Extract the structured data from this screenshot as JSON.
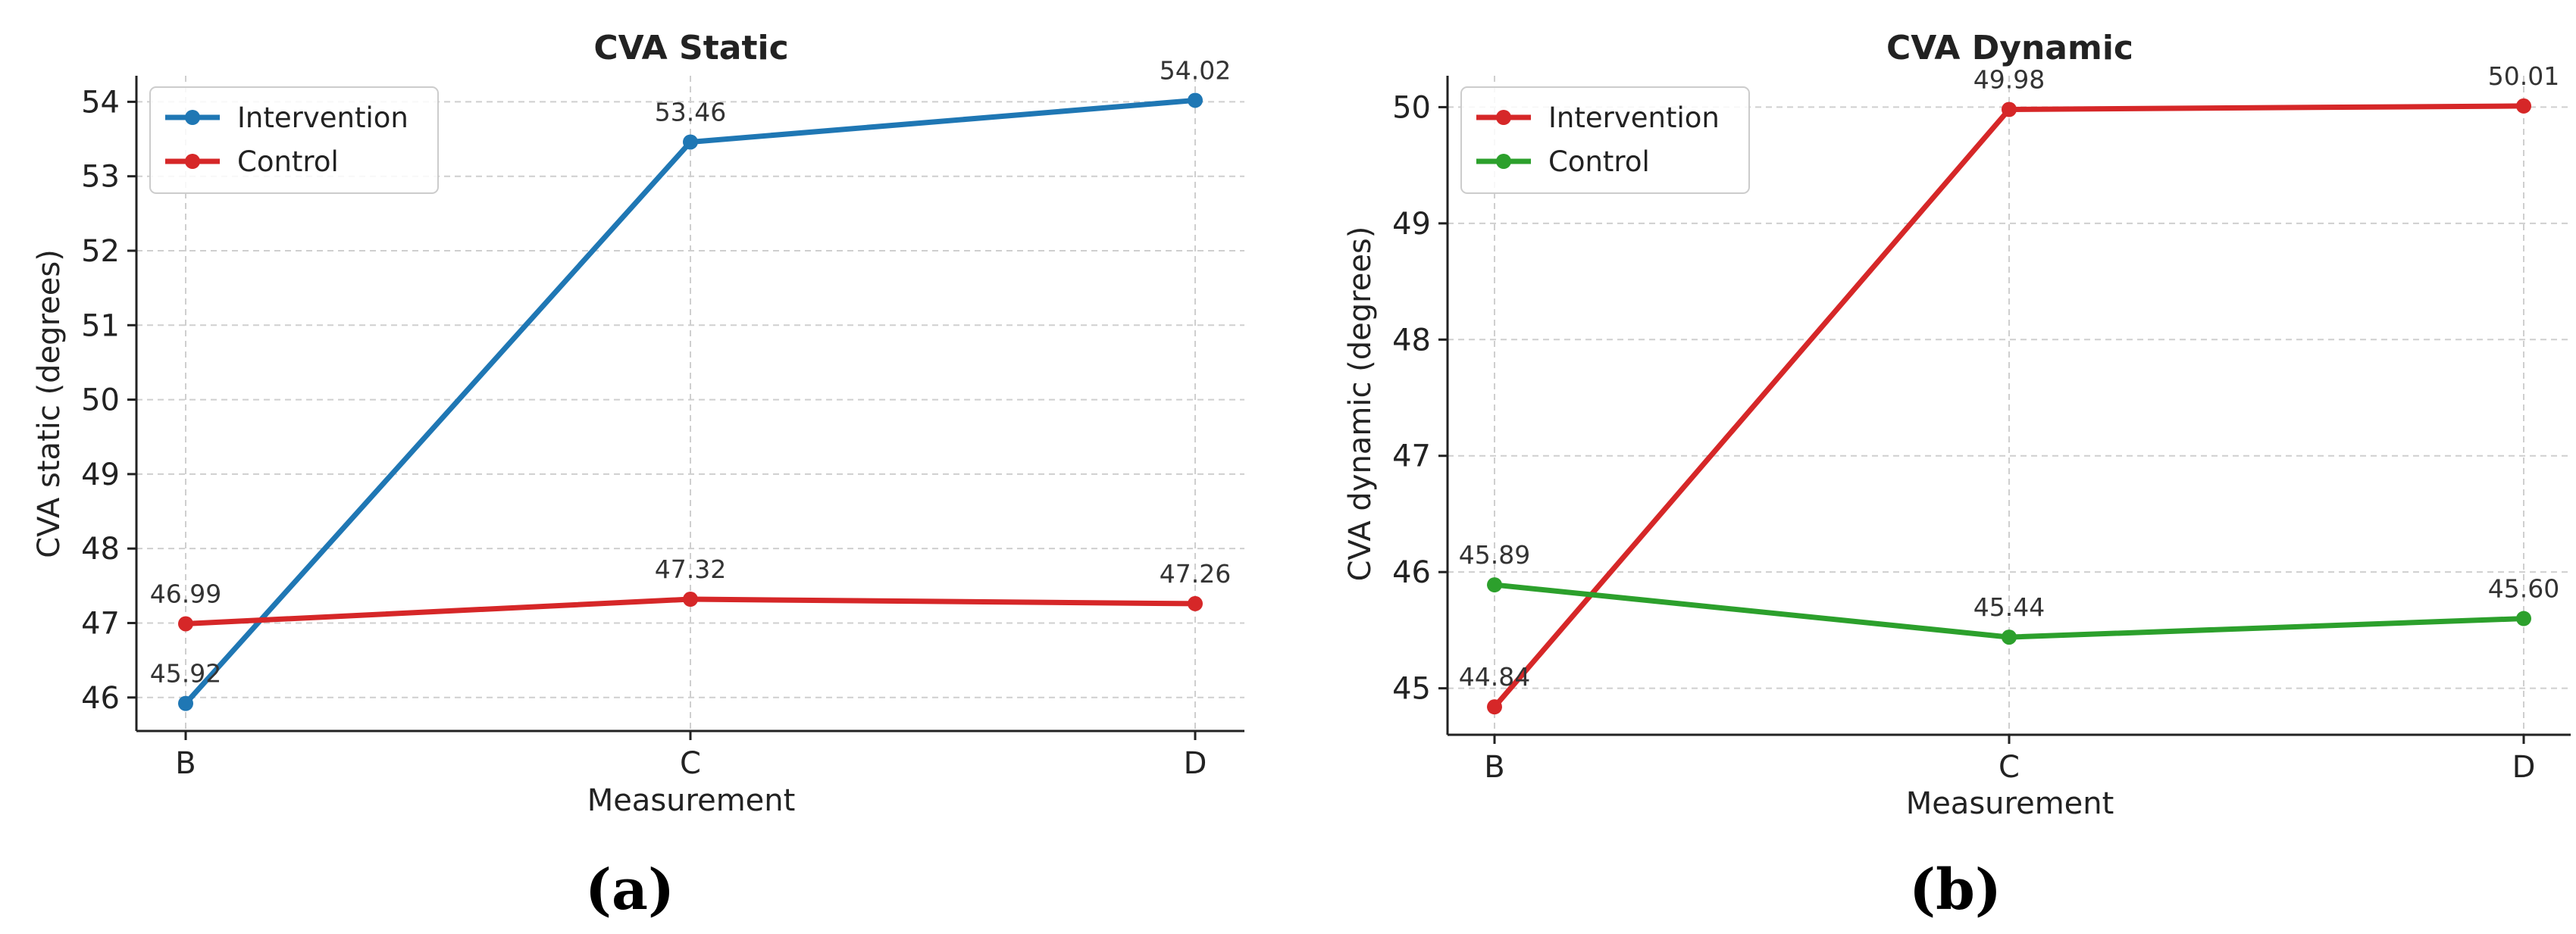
{
  "chart_data": [
    {
      "type": "line",
      "title": "CVA Static",
      "xlabel": "Measurement",
      "ylabel": "CVA static (degrees)",
      "categories": [
        "B",
        "C",
        "D"
      ],
      "ylim": [
        45.55,
        54.35
      ],
      "yticks": [
        46,
        47,
        48,
        49,
        50,
        51,
        52,
        53,
        54
      ],
      "grid": true,
      "legend_position": "top-left",
      "caption": "(a)",
      "series": [
        {
          "name": "Intervention",
          "color": "#1f77b4",
          "values": [
            45.92,
            53.46,
            54.02
          ],
          "labels": [
            "45.92",
            "53.46",
            "54.02"
          ]
        },
        {
          "name": "Control",
          "color": "#d62728",
          "values": [
            46.99,
            47.32,
            47.26
          ],
          "labels": [
            "46.99",
            "47.32",
            "47.26"
          ]
        }
      ]
    },
    {
      "type": "line",
      "title": "CVA Dynamic",
      "xlabel": "Measurement",
      "ylabel": "CVA dynamic (degrees)",
      "categories": [
        "B",
        "C",
        "D"
      ],
      "ylim": [
        44.6,
        50.27
      ],
      "yticks": [
        45,
        46,
        47,
        48,
        49,
        50
      ],
      "grid": true,
      "legend_position": "top-left",
      "caption": "(b)",
      "series": [
        {
          "name": "Intervention",
          "color": "#d62728",
          "values": [
            44.84,
            49.98,
            50.01
          ],
          "labels": [
            "44.84",
            "49.98",
            "50.01"
          ]
        },
        {
          "name": "Control",
          "color": "#2ca02c",
          "values": [
            45.89,
            45.44,
            45.6
          ],
          "labels": [
            "45.89",
            "45.44",
            "45.60"
          ]
        }
      ]
    }
  ]
}
